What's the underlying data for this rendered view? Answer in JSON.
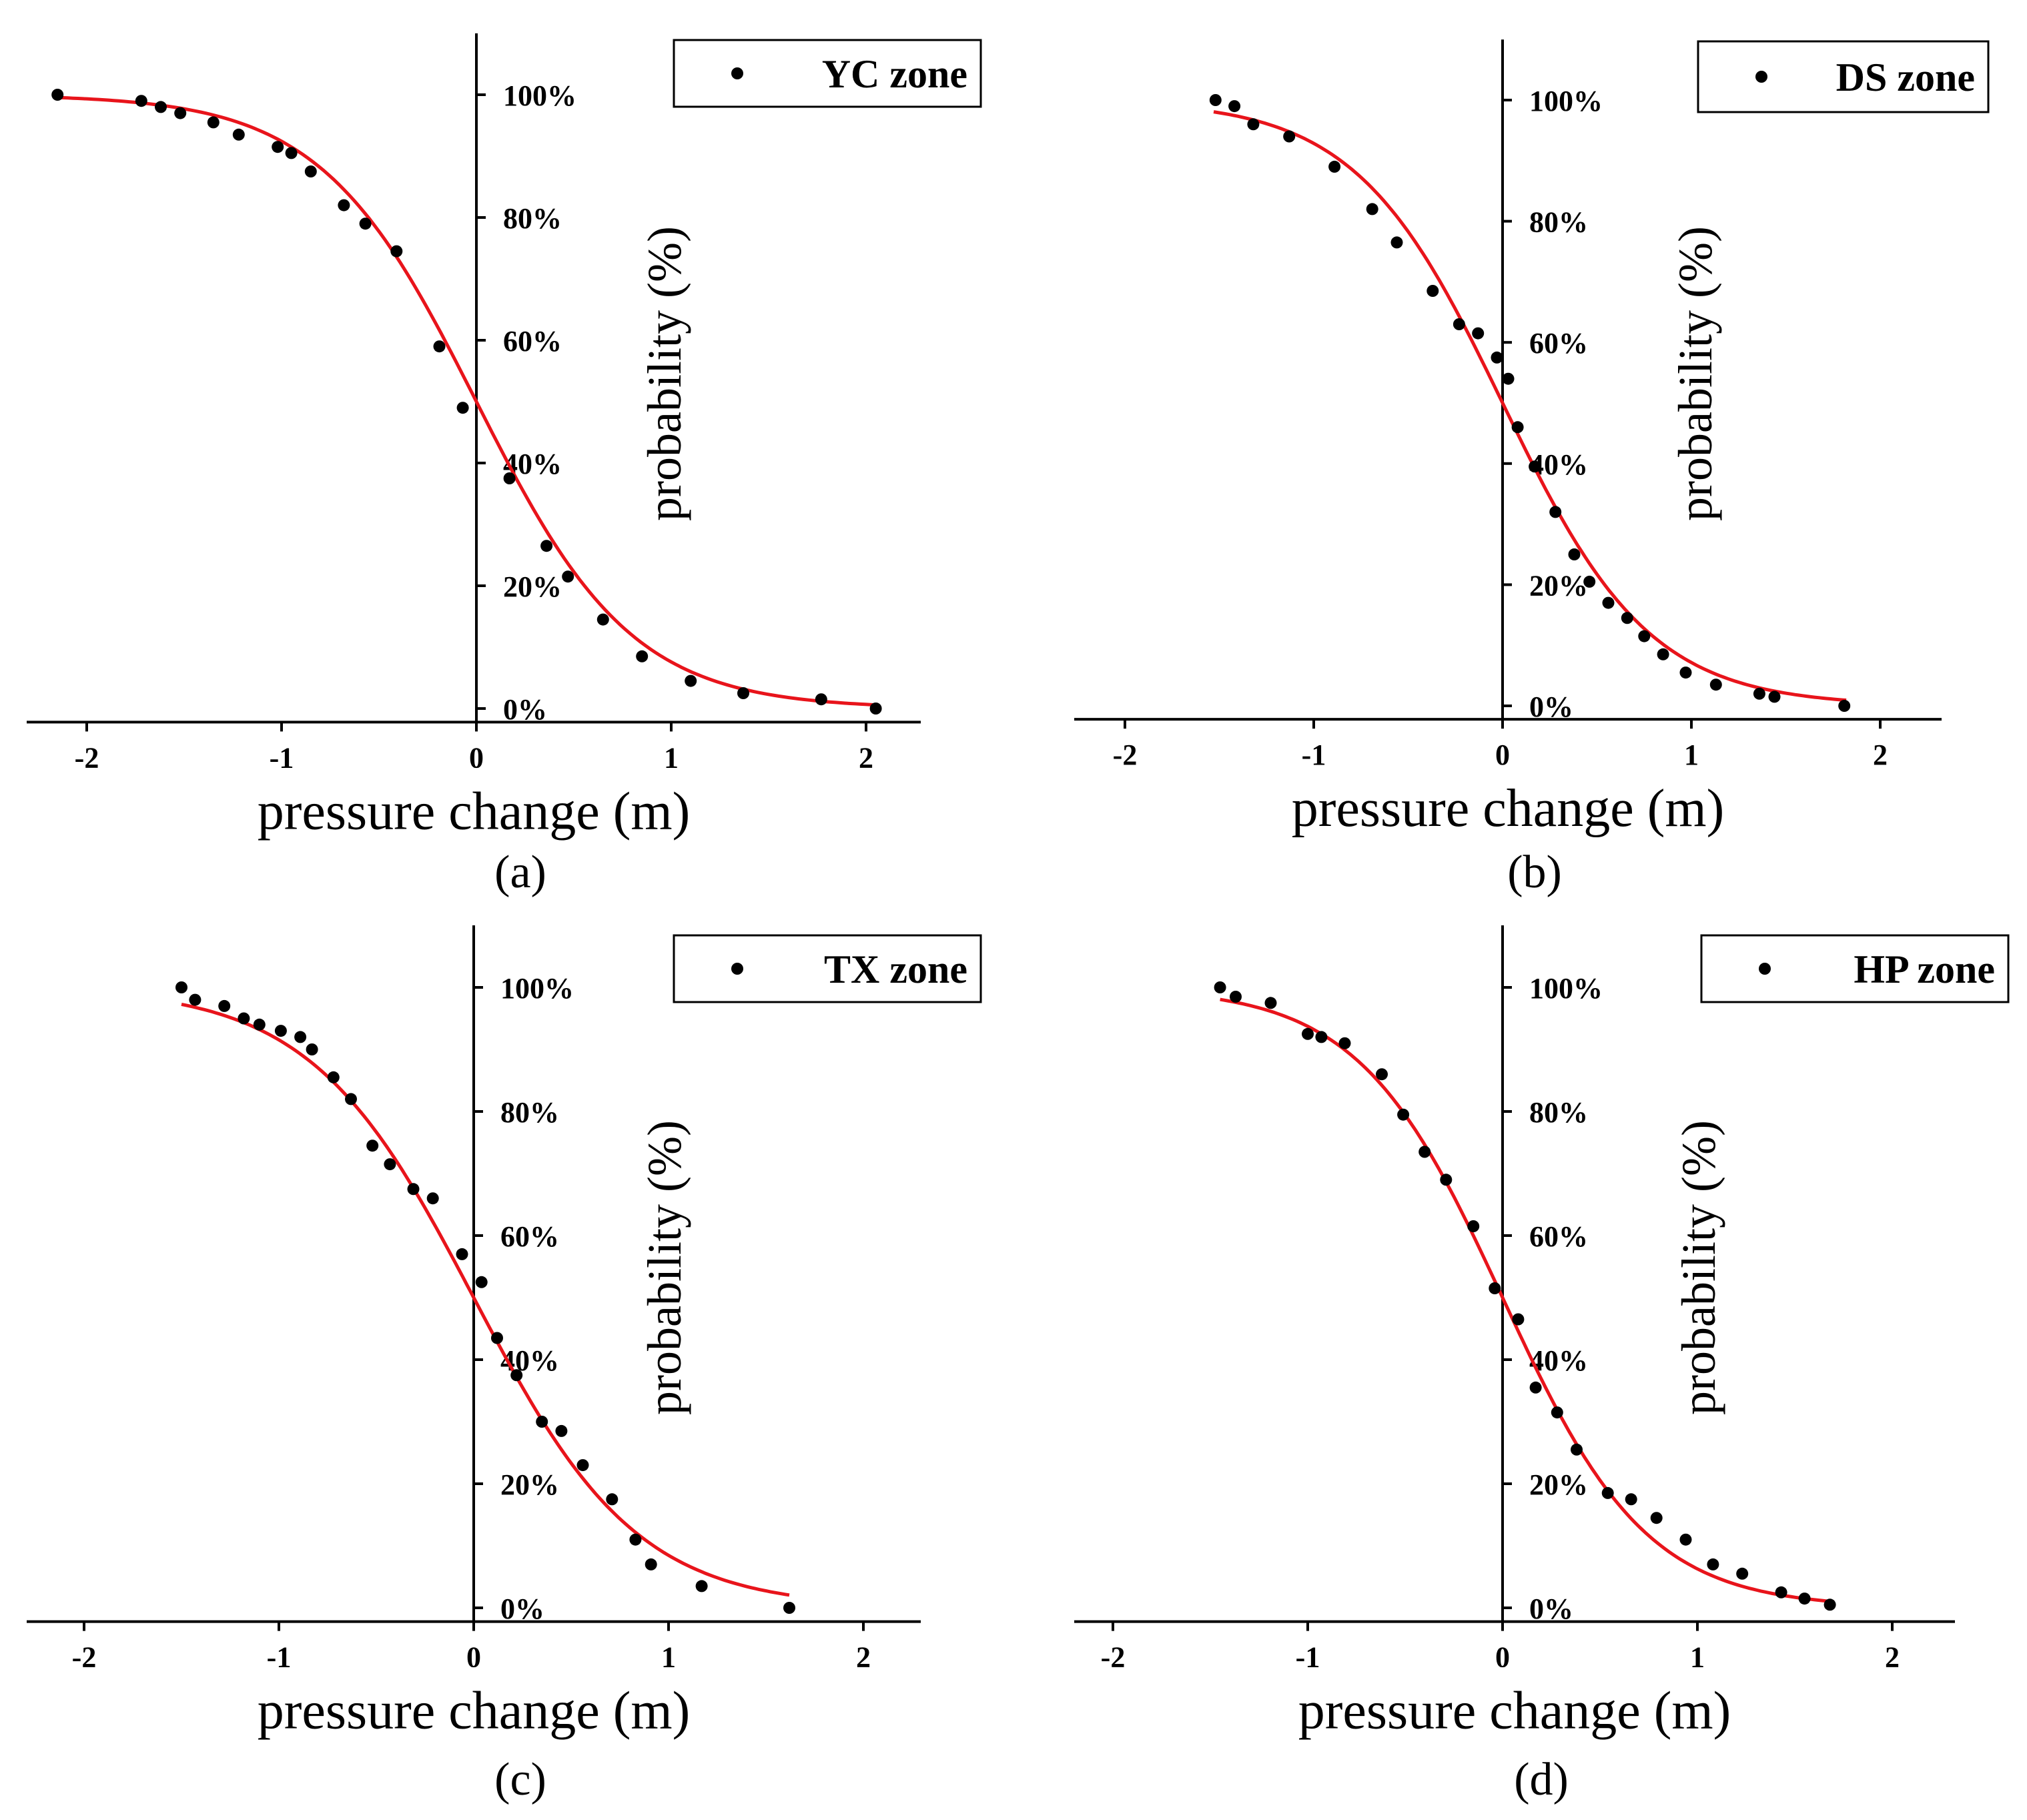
{
  "figure": {
    "xlabel": "pressure change (m)",
    "ylabel": "probability (%)"
  },
  "chart_data": [
    {
      "panel": "a",
      "panel_label": "(a)",
      "type": "scatter",
      "legend": "YC zone",
      "series_color": "#000000",
      "fit_color": "#e8141b",
      "xlim": [
        -2.3,
        2.3
      ],
      "ylim": [
        -2,
        110
      ],
      "x_ticks": [
        -2,
        -1,
        0,
        1,
        2
      ],
      "x_tick_labels": [
        "-2",
        "-1",
        "0",
        "1",
        "2"
      ],
      "y_ticks": [
        0,
        20,
        40,
        60,
        80,
        100
      ],
      "y_tick_labels": [
        "0%",
        "20%",
        "40%",
        "60%",
        "80%",
        "100%"
      ],
      "fit": {
        "model": "logistic",
        "x0": 0.0,
        "s": 0.4,
        "xmin": -2.15,
        "xmax": 2.05
      },
      "points": [
        [
          -2.15,
          100
        ],
        [
          -1.72,
          99
        ],
        [
          -1.62,
          98
        ],
        [
          -1.52,
          97
        ],
        [
          -1.35,
          95.5
        ],
        [
          -1.22,
          93.5
        ],
        [
          -1.02,
          91.5
        ],
        [
          -0.95,
          90.5
        ],
        [
          -0.85,
          87.5
        ],
        [
          -0.68,
          82
        ],
        [
          -0.57,
          79
        ],
        [
          -0.41,
          74.5
        ],
        [
          -0.19,
          59
        ],
        [
          -0.07,
          49
        ],
        [
          0.17,
          37.5
        ],
        [
          0.36,
          26.5
        ],
        [
          0.47,
          21.5
        ],
        [
          0.65,
          14.5
        ],
        [
          0.85,
          8.5
        ],
        [
          1.1,
          4.5
        ],
        [
          1.37,
          2.5
        ],
        [
          1.77,
          1.5
        ],
        [
          2.05,
          0
        ]
      ]
    },
    {
      "panel": "b",
      "panel_label": "(b)",
      "type": "scatter",
      "legend": "DS zone",
      "series_color": "#000000",
      "fit_color": "#e8141b",
      "xlim": [
        -2.3,
        2.3
      ],
      "ylim": [
        -2,
        110
      ],
      "x_ticks": [
        -2,
        -1,
        0,
        1,
        2
      ],
      "x_tick_labels": [
        "-2",
        "-1",
        "0",
        "1",
        "2"
      ],
      "y_ticks": [
        0,
        20,
        40,
        60,
        80,
        100
      ],
      "y_tick_labels": [
        "0%",
        "20%",
        "40%",
        "60%",
        "80%",
        "100%"
      ],
      "fit": {
        "model": "logistic",
        "x0": 0.0,
        "s": 0.39,
        "xmin": -1.53,
        "xmax": 1.82
      },
      "points": [
        [
          -1.52,
          100
        ],
        [
          -1.42,
          99
        ],
        [
          -1.32,
          96
        ],
        [
          -1.13,
          94
        ],
        [
          -0.89,
          89
        ],
        [
          -0.69,
          82
        ],
        [
          -0.56,
          76.5
        ],
        [
          -0.37,
          68.5
        ],
        [
          -0.23,
          63
        ],
        [
          -0.13,
          61.5
        ],
        [
          -0.03,
          57.5
        ],
        [
          0.03,
          54
        ],
        [
          0.08,
          46
        ],
        [
          0.17,
          39.5
        ],
        [
          0.28,
          32
        ],
        [
          0.38,
          25
        ],
        [
          0.46,
          20.5
        ],
        [
          0.56,
          17
        ],
        [
          0.66,
          14.5
        ],
        [
          0.75,
          11.5
        ],
        [
          0.85,
          8.5
        ],
        [
          0.97,
          5.5
        ],
        [
          1.13,
          3.5
        ],
        [
          1.36,
          2
        ],
        [
          1.44,
          1.5
        ],
        [
          1.81,
          0
        ]
      ]
    },
    {
      "panel": "c",
      "panel_label": "(c)",
      "type": "scatter",
      "legend": "TX zone",
      "series_color": "#000000",
      "fit_color": "#e8141b",
      "xlim": [
        -2.3,
        2.3
      ],
      "ylim": [
        -2,
        110
      ],
      "x_ticks": [
        -2,
        -1,
        0,
        1,
        2
      ],
      "x_tick_labels": [
        "-2",
        "-1",
        "0",
        "1",
        "2"
      ],
      "y_ticks": [
        0,
        20,
        40,
        60,
        80,
        100
      ],
      "y_tick_labels": [
        "0%",
        "20%",
        "40%",
        "60%",
        "80%",
        "100%"
      ],
      "fit": {
        "model": "logistic",
        "x0": 0.0,
        "s": 0.42,
        "xmin": -1.5,
        "xmax": 1.62
      },
      "points": [
        [
          -1.5,
          100
        ],
        [
          -1.43,
          98
        ],
        [
          -1.28,
          97
        ],
        [
          -1.18,
          95
        ],
        [
          -1.1,
          94
        ],
        [
          -0.99,
          93
        ],
        [
          -0.89,
          92
        ],
        [
          -0.83,
          90
        ],
        [
          -0.72,
          85.5
        ],
        [
          -0.63,
          82
        ],
        [
          -0.52,
          74.5
        ],
        [
          -0.43,
          71.5
        ],
        [
          -0.31,
          67.5
        ],
        [
          -0.21,
          66
        ],
        [
          -0.06,
          57
        ],
        [
          0.04,
          52.5
        ],
        [
          0.12,
          43.5
        ],
        [
          0.22,
          37.5
        ],
        [
          0.35,
          30
        ],
        [
          0.45,
          28.5
        ],
        [
          0.56,
          23
        ],
        [
          0.71,
          17.5
        ],
        [
          0.83,
          11
        ],
        [
          0.91,
          7
        ],
        [
          1.17,
          3.5
        ],
        [
          1.62,
          0
        ]
      ]
    },
    {
      "panel": "d",
      "panel_label": "(d)",
      "type": "scatter",
      "legend": "HP zone",
      "series_color": "#000000",
      "fit_color": "#e8141b",
      "xlim": [
        -2.3,
        2.3
      ],
      "ylim": [
        -2,
        110
      ],
      "x_ticks": [
        -2,
        -1,
        0,
        1,
        2
      ],
      "x_tick_labels": [
        "-2",
        "-1",
        "0",
        "1",
        "2"
      ],
      "y_ticks": [
        0,
        20,
        40,
        60,
        80,
        100
      ],
      "y_tick_labels": [
        "0%",
        "20%",
        "40%",
        "60%",
        "80%",
        "100%"
      ],
      "fit": {
        "model": "logistic",
        "x0": 0.0,
        "s": 0.37,
        "xmin": -1.45,
        "xmax": 1.7
      },
      "points": [
        [
          -1.45,
          100
        ],
        [
          -1.37,
          98.5
        ],
        [
          -1.19,
          97.5
        ],
        [
          -1.0,
          92.5
        ],
        [
          -0.93,
          92
        ],
        [
          -0.81,
          91
        ],
        [
          -0.62,
          86
        ],
        [
          -0.51,
          79.5
        ],
        [
          -0.4,
          73.5
        ],
        [
          -0.29,
          69
        ],
        [
          -0.15,
          61.5
        ],
        [
          -0.04,
          51.5
        ],
        [
          0.08,
          46.5
        ],
        [
          0.17,
          35.5
        ],
        [
          0.28,
          31.5
        ],
        [
          0.38,
          25.5
        ],
        [
          0.54,
          18.5
        ],
        [
          0.66,
          17.5
        ],
        [
          0.79,
          14.5
        ],
        [
          0.94,
          11
        ],
        [
          1.08,
          7
        ],
        [
          1.23,
          5.5
        ],
        [
          1.43,
          2.5
        ],
        [
          1.55,
          1.5
        ],
        [
          1.68,
          0.5
        ]
      ]
    }
  ]
}
